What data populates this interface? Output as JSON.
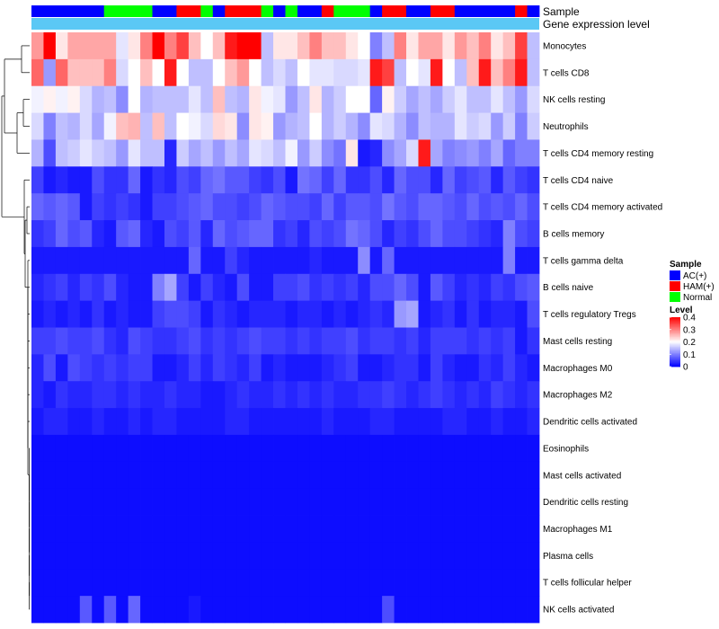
{
  "chart_data": {
    "type": "heatmap",
    "title": "",
    "annotation_tracks": [
      "Sample",
      "Gene expression level"
    ],
    "sample_track": [
      "AC(+)",
      "AC(+)",
      "AC(+)",
      "AC(+)",
      "AC(+)",
      "AC(+)",
      "Normal",
      "Normal",
      "Normal",
      "Normal",
      "AC(+)",
      "AC(+)",
      "HAM(+)",
      "HAM(+)",
      "Normal",
      "AC(+)",
      "HAM(+)",
      "HAM(+)",
      "HAM(+)",
      "Normal",
      "AC(+)",
      "Normal",
      "AC(+)",
      "AC(+)",
      "HAM(+)",
      "Normal",
      "Normal",
      "Normal",
      "AC(+)",
      "HAM(+)",
      "HAM(+)",
      "AC(+)",
      "AC(+)",
      "HAM(+)",
      "HAM(+)",
      "AC(+)",
      "AC(+)",
      "AC(+)",
      "AC(+)",
      "AC(+)",
      "HAM(+)",
      "AC(+)"
    ],
    "rows": [
      "Monocytes",
      "T cells CD8",
      "NK cells resting",
      "Neutrophils",
      "T cells CD4 memory resting",
      "T cells CD4 naive",
      "T cells CD4 memory activated",
      "B cells memory",
      "T cells gamma delta",
      "B cells naive",
      "T cells regulatory  Tregs",
      "Mast cells resting",
      "Macrophages M0",
      "Macrophages M2",
      "Dendritic cells activated",
      "Eosinophils",
      "Mast cells activated",
      "Dendritic cells resting",
      "Macrophages M1",
      "Plasma cells",
      "T cells follicular helper",
      "NK cells activated"
    ],
    "values": [
      [
        0.28,
        0.4,
        0.22,
        0.27,
        0.27,
        0.27,
        0.27,
        0.18,
        0.22,
        0.3,
        0.4,
        0.3,
        0.35,
        0.25,
        0.2,
        0.25,
        0.38,
        0.4,
        0.4,
        0.15,
        0.22,
        0.22,
        0.25,
        0.3,
        0.25,
        0.25,
        0.22,
        0.2,
        0.1,
        0.15,
        0.3,
        0.22,
        0.27,
        0.27,
        0.22,
        0.28,
        0.25,
        0.3,
        0.22,
        0.25,
        0.35,
        0.15
      ],
      [
        0.32,
        0.12,
        0.32,
        0.25,
        0.25,
        0.25,
        0.3,
        0.17,
        0.2,
        0.25,
        0.2,
        0.38,
        0.2,
        0.15,
        0.15,
        0.2,
        0.25,
        0.28,
        0.2,
        0.15,
        0.17,
        0.15,
        0.2,
        0.18,
        0.18,
        0.17,
        0.17,
        0.18,
        0.38,
        0.35,
        0.15,
        0.2,
        0.18,
        0.38,
        0.2,
        0.15,
        0.25,
        0.38,
        0.25,
        0.3,
        0.38,
        0.15
      ],
      [
        0.19,
        0.21,
        0.19,
        0.21,
        0.17,
        0.14,
        0.15,
        0.11,
        0.2,
        0.14,
        0.15,
        0.15,
        0.15,
        0.18,
        0.15,
        0.25,
        0.15,
        0.14,
        0.22,
        0.19,
        0.18,
        0.12,
        0.15,
        0.22,
        0.14,
        0.16,
        0.2,
        0.2,
        0.08,
        0.21,
        0.16,
        0.13,
        0.15,
        0.13,
        0.16,
        0.18,
        0.15,
        0.15,
        0.18,
        0.15,
        0.12,
        0.17
      ],
      [
        0.17,
        0.1,
        0.15,
        0.14,
        0.17,
        0.13,
        0.19,
        0.25,
        0.26,
        0.15,
        0.25,
        0.15,
        0.2,
        0.19,
        0.17,
        0.23,
        0.22,
        0.11,
        0.22,
        0.21,
        0.12,
        0.14,
        0.15,
        0.2,
        0.14,
        0.16,
        0.14,
        0.11,
        0.18,
        0.17,
        0.14,
        0.11,
        0.15,
        0.14,
        0.14,
        0.18,
        0.16,
        0.17,
        0.12,
        0.16,
        0.1,
        0.16
      ],
      [
        0.14,
        0.06,
        0.15,
        0.16,
        0.18,
        0.16,
        0.15,
        0.12,
        0.18,
        0.15,
        0.15,
        0.03,
        0.16,
        0.13,
        0.15,
        0.12,
        0.15,
        0.13,
        0.18,
        0.17,
        0.15,
        0.19,
        0.12,
        0.16,
        0.11,
        0.09,
        0.22,
        0.02,
        0.03,
        0.11,
        0.13,
        0.17,
        0.38,
        0.13,
        0.1,
        0.11,
        0.12,
        0.1,
        0.13,
        0.08,
        0.1,
        0.1
      ],
      [
        0.05,
        0.02,
        0.03,
        0.02,
        0.02,
        0.06,
        0.04,
        0.04,
        0.08,
        0.02,
        0.04,
        0.03,
        0.06,
        0.05,
        0.08,
        0.09,
        0.07,
        0.07,
        0.05,
        0.04,
        0.06,
        0.02,
        0.09,
        0.08,
        0.05,
        0.08,
        0.04,
        0.04,
        0.06,
        0.03,
        0.08,
        0.06,
        0.06,
        0.03,
        0.08,
        0.05,
        0.06,
        0.07,
        0.03,
        0.07,
        0.05,
        0.04
      ],
      [
        0.08,
        0.07,
        0.08,
        0.07,
        0.02,
        0.05,
        0.04,
        0.05,
        0.04,
        0.02,
        0.05,
        0.05,
        0.06,
        0.07,
        0.08,
        0.06,
        0.06,
        0.05,
        0.06,
        0.08,
        0.07,
        0.06,
        0.06,
        0.05,
        0.08,
        0.05,
        0.07,
        0.07,
        0.06,
        0.09,
        0.07,
        0.06,
        0.08,
        0.08,
        0.07,
        0.06,
        0.08,
        0.06,
        0.07,
        0.06,
        0.08,
        0.06
      ],
      [
        0.04,
        0.05,
        0.08,
        0.06,
        0.07,
        0.03,
        0.02,
        0.07,
        0.08,
        0.03,
        0.02,
        0.06,
        0.05,
        0.07,
        0.03,
        0.08,
        0.06,
        0.07,
        0.08,
        0.08,
        0.04,
        0.05,
        0.03,
        0.06,
        0.05,
        0.06,
        0.09,
        0.08,
        0.06,
        0.03,
        0.05,
        0.04,
        0.06,
        0.08,
        0.06,
        0.06,
        0.05,
        0.04,
        0.03,
        0.1,
        0.06,
        0.05
      ],
      [
        0.02,
        0.02,
        0.02,
        0.02,
        0.02,
        0.02,
        0.02,
        0.02,
        0.02,
        0.02,
        0.02,
        0.02,
        0.02,
        0.08,
        0.02,
        0.02,
        0.05,
        0.03,
        0.02,
        0.02,
        0.02,
        0.02,
        0.02,
        0.03,
        0.02,
        0.02,
        0.02,
        0.11,
        0.02,
        0.08,
        0.02,
        0.02,
        0.02,
        0.02,
        0.02,
        0.02,
        0.02,
        0.02,
        0.02,
        0.1,
        0.02,
        0.02
      ],
      [
        0.03,
        0.04,
        0.05,
        0.03,
        0.05,
        0.04,
        0.06,
        0.03,
        0.02,
        0.02,
        0.1,
        0.13,
        0.05,
        0.02,
        0.05,
        0.03,
        0.02,
        0.06,
        0.02,
        0.02,
        0.05,
        0.05,
        0.06,
        0.04,
        0.05,
        0.04,
        0.05,
        0.03,
        0.06,
        0.06,
        0.08,
        0.06,
        0.02,
        0.07,
        0.05,
        0.03,
        0.04,
        0.03,
        0.05,
        0.04,
        0.06,
        0.07
      ],
      [
        0.02,
        0.03,
        0.02,
        0.03,
        0.02,
        0.04,
        0.02,
        0.03,
        0.02,
        0.02,
        0.05,
        0.06,
        0.06,
        0.05,
        0.02,
        0.04,
        0.03,
        0.02,
        0.03,
        0.03,
        0.03,
        0.02,
        0.03,
        0.03,
        0.02,
        0.03,
        0.02,
        0.03,
        0.04,
        0.03,
        0.12,
        0.13,
        0.02,
        0.03,
        0.04,
        0.02,
        0.04,
        0.02,
        0.03,
        0.03,
        0.02,
        0.06
      ],
      [
        0.05,
        0.05,
        0.06,
        0.05,
        0.05,
        0.06,
        0.04,
        0.03,
        0.06,
        0.05,
        0.04,
        0.04,
        0.05,
        0.06,
        0.04,
        0.05,
        0.04,
        0.05,
        0.06,
        0.05,
        0.05,
        0.04,
        0.05,
        0.04,
        0.05,
        0.05,
        0.06,
        0.04,
        0.05,
        0.05,
        0.04,
        0.05,
        0.03,
        0.05,
        0.05,
        0.05,
        0.04,
        0.05,
        0.04,
        0.05,
        0.02,
        0.04
      ],
      [
        0.03,
        0.06,
        0.02,
        0.06,
        0.05,
        0.04,
        0.05,
        0.04,
        0.05,
        0.05,
        0.02,
        0.02,
        0.03,
        0.05,
        0.03,
        0.05,
        0.04,
        0.03,
        0.05,
        0.02,
        0.03,
        0.02,
        0.02,
        0.02,
        0.03,
        0.04,
        0.05,
        0.02,
        0.02,
        0.03,
        0.04,
        0.04,
        0.02,
        0.05,
        0.03,
        0.02,
        0.02,
        0.04,
        0.03,
        0.05,
        0.03,
        0.02
      ],
      [
        0.03,
        0.02,
        0.04,
        0.03,
        0.03,
        0.04,
        0.04,
        0.03,
        0.04,
        0.03,
        0.03,
        0.04,
        0.03,
        0.03,
        0.02,
        0.02,
        0.03,
        0.04,
        0.03,
        0.03,
        0.04,
        0.03,
        0.04,
        0.03,
        0.04,
        0.03,
        0.03,
        0.04,
        0.04,
        0.05,
        0.04,
        0.03,
        0.04,
        0.05,
        0.04,
        0.03,
        0.04,
        0.03,
        0.05,
        0.04,
        0.03,
        0.04
      ],
      [
        0.02,
        0.03,
        0.03,
        0.02,
        0.02,
        0.03,
        0.02,
        0.02,
        0.03,
        0.02,
        0.03,
        0.03,
        0.02,
        0.02,
        0.02,
        0.02,
        0.03,
        0.03,
        0.02,
        0.02,
        0.02,
        0.02,
        0.02,
        0.02,
        0.03,
        0.02,
        0.02,
        0.02,
        0.03,
        0.03,
        0.02,
        0.02,
        0.02,
        0.02,
        0.03,
        0.03,
        0.02,
        0.02,
        0.03,
        0.02,
        0.02,
        0.03
      ],
      [
        0.01,
        0.01,
        0.01,
        0.01,
        0.01,
        0.01,
        0.01,
        0.01,
        0.01,
        0.01,
        0.01,
        0.01,
        0.01,
        0.01,
        0.01,
        0.01,
        0.01,
        0.01,
        0.01,
        0.01,
        0.01,
        0.01,
        0.01,
        0.01,
        0.01,
        0.01,
        0.01,
        0.01,
        0.01,
        0.01,
        0.01,
        0.01,
        0.01,
        0.01,
        0.01,
        0.01,
        0.01,
        0.01,
        0.01,
        0.01,
        0.01,
        0.01
      ],
      [
        0.01,
        0.01,
        0.01,
        0.01,
        0.01,
        0.01,
        0.01,
        0.01,
        0.01,
        0.01,
        0.01,
        0.01,
        0.01,
        0.01,
        0.01,
        0.01,
        0.01,
        0.01,
        0.01,
        0.01,
        0.01,
        0.01,
        0.01,
        0.01,
        0.01,
        0.01,
        0.01,
        0.01,
        0.01,
        0.01,
        0.01,
        0.01,
        0.01,
        0.01,
        0.01,
        0.01,
        0.01,
        0.01,
        0.01,
        0.01,
        0.01,
        0.01
      ],
      [
        0.01,
        0.01,
        0.01,
        0.01,
        0.01,
        0.01,
        0.01,
        0.01,
        0.01,
        0.01,
        0.01,
        0.01,
        0.01,
        0.01,
        0.01,
        0.01,
        0.01,
        0.01,
        0.01,
        0.01,
        0.01,
        0.01,
        0.01,
        0.01,
        0.01,
        0.01,
        0.01,
        0.01,
        0.01,
        0.01,
        0.01,
        0.01,
        0.01,
        0.01,
        0.01,
        0.01,
        0.01,
        0.01,
        0.01,
        0.01,
        0.01,
        0.01
      ],
      [
        0.01,
        0.01,
        0.01,
        0.01,
        0.01,
        0.01,
        0.01,
        0.01,
        0.01,
        0.01,
        0.01,
        0.01,
        0.01,
        0.01,
        0.01,
        0.01,
        0.01,
        0.01,
        0.01,
        0.01,
        0.01,
        0.01,
        0.01,
        0.01,
        0.01,
        0.01,
        0.01,
        0.01,
        0.01,
        0.01,
        0.01,
        0.01,
        0.01,
        0.01,
        0.01,
        0.01,
        0.01,
        0.01,
        0.01,
        0.01,
        0.01,
        0.01
      ],
      [
        0.01,
        0.01,
        0.01,
        0.01,
        0.01,
        0.01,
        0.01,
        0.01,
        0.01,
        0.01,
        0.01,
        0.01,
        0.01,
        0.01,
        0.01,
        0.01,
        0.01,
        0.01,
        0.01,
        0.01,
        0.01,
        0.01,
        0.01,
        0.01,
        0.01,
        0.01,
        0.01,
        0.01,
        0.01,
        0.01,
        0.01,
        0.01,
        0.01,
        0.01,
        0.01,
        0.01,
        0.01,
        0.01,
        0.01,
        0.01,
        0.01,
        0.01
      ],
      [
        0.01,
        0.01,
        0.01,
        0.01,
        0.01,
        0.01,
        0.01,
        0.01,
        0.01,
        0.01,
        0.01,
        0.01,
        0.01,
        0.01,
        0.01,
        0.01,
        0.01,
        0.01,
        0.01,
        0.01,
        0.01,
        0.01,
        0.01,
        0.01,
        0.01,
        0.01,
        0.01,
        0.01,
        0.01,
        0.01,
        0.01,
        0.01,
        0.01,
        0.01,
        0.01,
        0.01,
        0.01,
        0.01,
        0.01,
        0.01,
        0.01,
        0.01
      ],
      [
        0.01,
        0.01,
        0.01,
        0.01,
        0.07,
        0.01,
        0.07,
        0.01,
        0.08,
        0.01,
        0.01,
        0.01,
        0.01,
        0.02,
        0.01,
        0.01,
        0.01,
        0.01,
        0.01,
        0.01,
        0.01,
        0.01,
        0.01,
        0.01,
        0.01,
        0.01,
        0.01,
        0.01,
        0.01,
        0.06,
        0.01,
        0.01,
        0.01,
        0.01,
        0.01,
        0.01,
        0.01,
        0.01,
        0.01,
        0.01,
        0.01,
        0.01
      ]
    ],
    "color_scale": {
      "min": 0,
      "max": 0.4,
      "colors": [
        "#0000ff",
        "#ffffff",
        "#ff0000"
      ]
    },
    "legend": {
      "sample_title": "Sample",
      "sample_entries": [
        {
          "label": "AC(+)",
          "color": "#0000ff"
        },
        {
          "label": "HAM(+)",
          "color": "#ff0000"
        },
        {
          "label": "Normal",
          "color": "#00ff00"
        }
      ],
      "level_title": "Level",
      "level_ticks": [
        0.4,
        0.3,
        0.2,
        0.1,
        0
      ],
      "level_tick_labels": [
        "0.4",
        "0.3",
        "0.2",
        "0.1",
        "0"
      ]
    },
    "expression_track_color": "#5bc8f5",
    "placement": "legend right"
  }
}
